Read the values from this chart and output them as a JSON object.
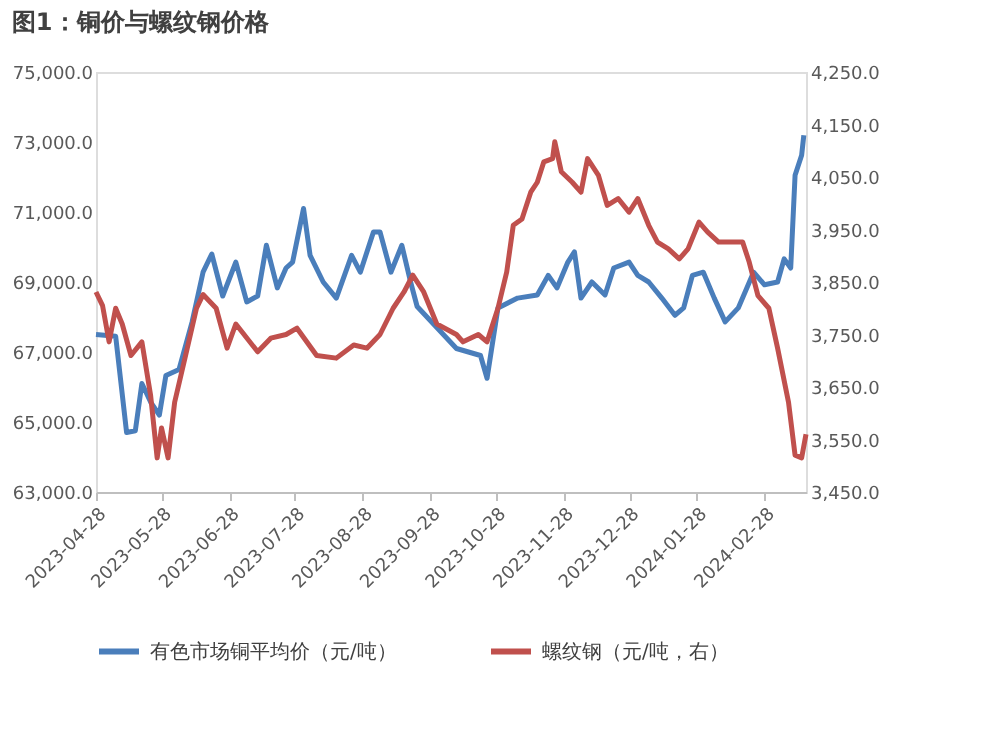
{
  "chart_data": {
    "type": "line",
    "title": "图1：铜价与螺纹钢价格",
    "xlim": [
      "2023-04-28",
      "2024-03-18"
    ],
    "xticks": [
      "2023-04-28",
      "2023-05-28",
      "2023-06-28",
      "2023-07-28",
      "2023-08-28",
      "2023-09-28",
      "2023-10-28",
      "2023-11-28",
      "2023-12-28",
      "2024-01-28",
      "2024-02-28"
    ],
    "ylim": [
      63000,
      75000
    ],
    "yticks": [
      {
        "value": 63000,
        "label": "63,000.0"
      },
      {
        "value": 65000,
        "label": "65,000.0"
      },
      {
        "value": 67000,
        "label": "67,000.0"
      },
      {
        "value": 69000,
        "label": "69,000.0"
      },
      {
        "value": 71000,
        "label": "71,000.0"
      },
      {
        "value": 73000,
        "label": "73,000.0"
      },
      {
        "value": 75000,
        "label": "75,000.0"
      }
    ],
    "y2lim": [
      3450,
      4250
    ],
    "y2ticks": [
      {
        "value": 3450,
        "label": "3,450.0"
      },
      {
        "value": 3550,
        "label": "3,550.0"
      },
      {
        "value": 3650,
        "label": "3,650.0"
      },
      {
        "value": 3750,
        "label": "3,750.0"
      },
      {
        "value": 3850,
        "label": "3,850.0"
      },
      {
        "value": 3950,
        "label": "3,950.0"
      },
      {
        "value": 4050,
        "label": "4,050.0"
      },
      {
        "value": 4150,
        "label": "4,150.0"
      },
      {
        "value": 4250,
        "label": "4,250.0"
      }
    ],
    "grid": false,
    "legend": "bottom",
    "marker": "none",
    "line_style": "solid",
    "series": [
      {
        "name": "有色市场铜平均价（元/吨）",
        "color": "#4a7ebb",
        "x": [
          "2023-04-28",
          "2023-05-07",
          "2023-05-12",
          "2023-05-16",
          "2023-05-19",
          "2023-05-23",
          "2023-05-27",
          "2023-05-30",
          "2023-06-05",
          "2023-06-11",
          "2023-06-16",
          "2023-06-20",
          "2023-06-25",
          "2023-07-01",
          "2023-07-06",
          "2023-07-11",
          "2023-07-15",
          "2023-07-20",
          "2023-07-24",
          "2023-07-27",
          "2023-08-01",
          "2023-08-04",
          "2023-08-10",
          "2023-08-16",
          "2023-08-23",
          "2023-08-27",
          "2023-09-02",
          "2023-09-05",
          "2023-09-10",
          "2023-09-15",
          "2023-09-19",
          "2023-09-22",
          "2023-10-10",
          "2023-10-21",
          "2023-10-24",
          "2023-10-29",
          "2023-11-07",
          "2023-11-16",
          "2023-11-21",
          "2023-11-25",
          "2023-11-30",
          "2023-12-03",
          "2023-12-06",
          "2023-12-11",
          "2023-12-17",
          "2023-12-21",
          "2023-12-28",
          "2024-01-01",
          "2024-01-06",
          "2024-01-12",
          "2024-01-18",
          "2024-01-22",
          "2024-01-26",
          "2024-01-31",
          "2024-02-05",
          "2024-02-10",
          "2024-02-16",
          "2024-02-23",
          "2024-02-28",
          "2024-03-05",
          "2024-03-08",
          "2024-03-11",
          "2024-03-13",
          "2024-03-16",
          "2024-03-17"
        ],
        "values": [
          67500,
          67450,
          64700,
          64750,
          66100,
          65570,
          65200,
          66330,
          66500,
          67860,
          69280,
          69800,
          68600,
          69570,
          68430,
          68600,
          70050,
          68830,
          69400,
          69570,
          71100,
          69760,
          69000,
          68540,
          69760,
          69280,
          70430,
          70430,
          69280,
          70050,
          69000,
          68300,
          67100,
          66900,
          66250,
          68260,
          68540,
          68630,
          69190,
          68830,
          69570,
          69860,
          68540,
          69000,
          68630,
          69400,
          69570,
          69190,
          69000,
          68540,
          68050,
          68260,
          69190,
          69280,
          68540,
          67860,
          68260,
          69280,
          68920,
          69000,
          69660,
          69400,
          72050,
          72620,
          73190
        ]
      },
      {
        "name": "螺纹钢（元/吨，右）",
        "color": "#c0504d",
        "axis": "y2",
        "x": [
          "2023-04-28",
          "2023-05-01",
          "2023-05-04",
          "2023-05-07",
          "2023-05-10",
          "2023-05-14",
          "2023-05-19",
          "2023-05-23",
          "2023-05-26",
          "2023-05-28",
          "2023-05-31",
          "2023-06-03",
          "2023-06-08",
          "2023-06-13",
          "2023-06-16",
          "2023-06-22",
          "2023-06-27",
          "2023-07-01",
          "2023-07-11",
          "2023-07-17",
          "2023-07-24",
          "2023-07-29",
          "2023-08-07",
          "2023-08-16",
          "2023-08-24",
          "2023-08-30",
          "2023-09-05",
          "2023-09-11",
          "2023-09-16",
          "2023-09-20",
          "2023-09-25",
          "2023-10-01",
          "2023-10-10",
          "2023-10-13",
          "2023-10-20",
          "2023-10-24",
          "2023-10-29",
          "2023-11-02",
          "2023-11-05",
          "2023-11-09",
          "2023-11-13",
          "2023-11-16",
          "2023-11-19",
          "2023-11-23",
          "2023-11-24",
          "2023-11-27",
          "2023-12-02",
          "2023-12-06",
          "2023-12-09",
          "2023-12-14",
          "2023-12-18",
          "2023-12-23",
          "2023-12-28",
          "2024-01-01",
          "2024-01-06",
          "2024-01-10",
          "2024-01-15",
          "2024-01-20",
          "2024-01-24",
          "2024-01-29",
          "2024-02-02",
          "2024-02-07",
          "2024-02-11",
          "2024-02-18",
          "2024-02-21",
          "2024-02-25",
          "2024-03-01",
          "2024-03-05",
          "2024-03-10",
          "2024-03-13",
          "2024-03-16",
          "2024-03-18"
        ],
        "values": [
          3831,
          3805,
          3736,
          3800,
          3770,
          3710,
          3736,
          3634,
          3515,
          3572,
          3515,
          3621,
          3710,
          3800,
          3826,
          3800,
          3724,
          3770,
          3717,
          3743,
          3750,
          3762,
          3710,
          3705,
          3730,
          3724,
          3750,
          3800,
          3831,
          3863,
          3831,
          3770,
          3750,
          3736,
          3750,
          3736,
          3800,
          3869,
          3958,
          3970,
          4021,
          4040,
          4079,
          4085,
          4117,
          4060,
          4040,
          4021,
          4085,
          4053,
          3996,
          4009,
          3983,
          4009,
          3958,
          3926,
          3913,
          3894,
          3913,
          3964,
          3945,
          3926,
          3926,
          3926,
          3888,
          3824,
          3800,
          3724,
          3621,
          3520,
          3515,
          3560
        ]
      }
    ]
  }
}
